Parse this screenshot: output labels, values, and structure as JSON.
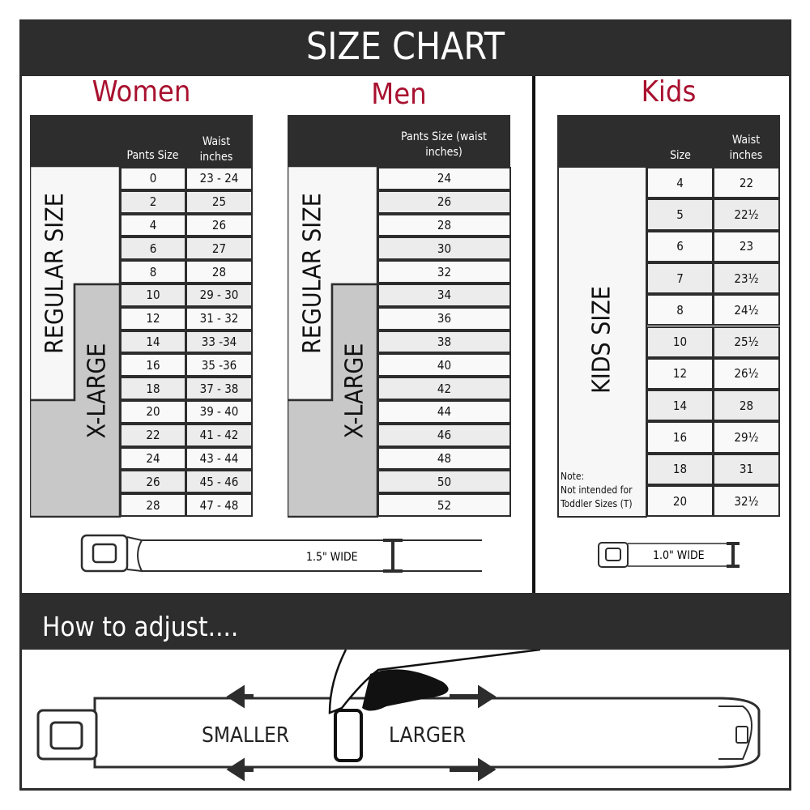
{
  "title": "SIZE CHART",
  "women": {
    "title": "Women",
    "col1": "Pants Size",
    "col2": "Waist inches",
    "regular_label": "REGULAR SIZE",
    "xlarge_label": "X-LARGE",
    "rows": [
      [
        "0",
        "23 - 24"
      ],
      [
        "2",
        "25"
      ],
      [
        "4",
        "26"
      ],
      [
        "6",
        "27"
      ],
      [
        "8",
        "28"
      ],
      [
        "10",
        "29 - 30"
      ],
      [
        "12",
        "31 - 32"
      ],
      [
        "14",
        "33 -34"
      ],
      [
        "16",
        "35 -36"
      ],
      [
        "18",
        "37 - 38"
      ],
      [
        "20",
        "39 - 40"
      ],
      [
        "22",
        "41 - 42"
      ],
      [
        "24",
        "43 - 44"
      ],
      [
        "26",
        "45 - 46"
      ],
      [
        "28",
        "47 - 48"
      ]
    ],
    "width_label": "1.5\" WIDE"
  },
  "men": {
    "title": "Men",
    "col1": "Pants Size (waist inches)",
    "regular_label": "REGULAR SIZE",
    "xlarge_label": "X-LARGE",
    "rows": [
      "24",
      "26",
      "28",
      "30",
      "32",
      "34",
      "36",
      "38",
      "40",
      "42",
      "44",
      "46",
      "48",
      "50",
      "52"
    ]
  },
  "kids": {
    "title": "Kids",
    "col1": "Size",
    "col2": "Waist inches",
    "label": "KIDS SIZE",
    "note_title": "Note:",
    "note_text1": "Not intended for",
    "note_text2": "Toddler Sizes (T)",
    "rows": [
      [
        "4",
        "22"
      ],
      [
        "5",
        "22½"
      ],
      [
        "6",
        "23"
      ],
      [
        "7",
        "23½"
      ],
      [
        "8",
        "24½"
      ],
      [
        "10",
        "25½"
      ],
      [
        "12",
        "26½"
      ],
      [
        "14",
        "28"
      ],
      [
        "16",
        "29½"
      ],
      [
        "18",
        "31"
      ],
      [
        "20",
        "32½"
      ]
    ],
    "width_label": "1.0\" WIDE"
  },
  "adjust": {
    "title": "How to adjust....",
    "smaller": "SMALLER",
    "larger": "LARGER"
  },
  "colors": {
    "dark": "#2d2d2d",
    "accent": "#a8112f",
    "xlarge_gray": "#c8c8c8",
    "row_alt": "#ececec"
  }
}
